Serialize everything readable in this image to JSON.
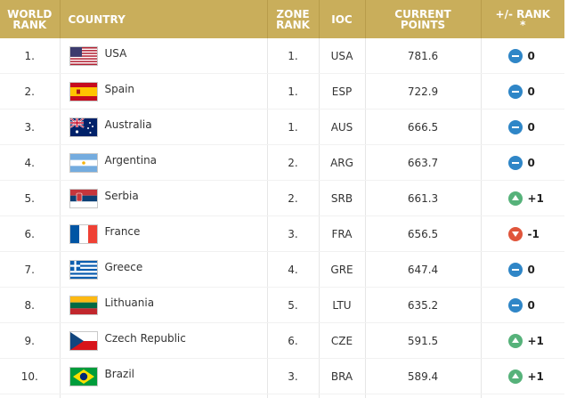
{
  "headers": {
    "world_rank_line1": "WORLD",
    "world_rank_line2": "RANK",
    "country": "COUNTRY",
    "zone_rank_line1": "ZONE",
    "zone_rank_line2": "RANK",
    "ioc": "IOC",
    "points_line1": "CURRENT",
    "points_line2": "POINTS",
    "rank_change_line1": "+/- RANK",
    "rank_change_line2": "*"
  },
  "colors": {
    "header_bg": "#c9ae5b",
    "same": "#2f86c7",
    "up": "#56b27a",
    "down": "#e0553b"
  },
  "rows": [
    {
      "world_rank": "1.",
      "flag": "usa-flag-icon",
      "country": "USA",
      "zone_rank": "1.",
      "ioc": "USA",
      "points": "781.6",
      "trend": "same",
      "change": "0"
    },
    {
      "world_rank": "2.",
      "flag": "spain-flag-icon",
      "country": "Spain",
      "zone_rank": "1.",
      "ioc": "ESP",
      "points": "722.9",
      "trend": "same",
      "change": "0"
    },
    {
      "world_rank": "3.",
      "flag": "australia-flag-icon",
      "country": "Australia",
      "zone_rank": "1.",
      "ioc": "AUS",
      "points": "666.5",
      "trend": "same",
      "change": "0"
    },
    {
      "world_rank": "4.",
      "flag": "argentina-flag-icon",
      "country": "Argentina",
      "zone_rank": "2.",
      "ioc": "ARG",
      "points": "663.7",
      "trend": "same",
      "change": "0"
    },
    {
      "world_rank": "5.",
      "flag": "serbia-flag-icon",
      "country": "Serbia",
      "zone_rank": "2.",
      "ioc": "SRB",
      "points": "661.3",
      "trend": "up",
      "change": "+1"
    },
    {
      "world_rank": "6.",
      "flag": "france-flag-icon",
      "country": "France",
      "zone_rank": "3.",
      "ioc": "FRA",
      "points": "656.5",
      "trend": "down",
      "change": "-1"
    },
    {
      "world_rank": "7.",
      "flag": "greece-flag-icon",
      "country": "Greece",
      "zone_rank": "4.",
      "ioc": "GRE",
      "points": "647.4",
      "trend": "same",
      "change": "0"
    },
    {
      "world_rank": "8.",
      "flag": "lithuania-flag-icon",
      "country": "Lithuania",
      "zone_rank": "5.",
      "ioc": "LTU",
      "points": "635.2",
      "trend": "same",
      "change": "0"
    },
    {
      "world_rank": "9.",
      "flag": "czech-flag-icon",
      "country": "Czech Republic",
      "zone_rank": "6.",
      "ioc": "CZE",
      "points": "591.5",
      "trend": "up",
      "change": "+1"
    },
    {
      "world_rank": "10.",
      "flag": "brazil-flag-icon",
      "country": "Brazil",
      "zone_rank": "3.",
      "ioc": "BRA",
      "points": "589.4",
      "trend": "up",
      "change": "+1"
    }
  ]
}
